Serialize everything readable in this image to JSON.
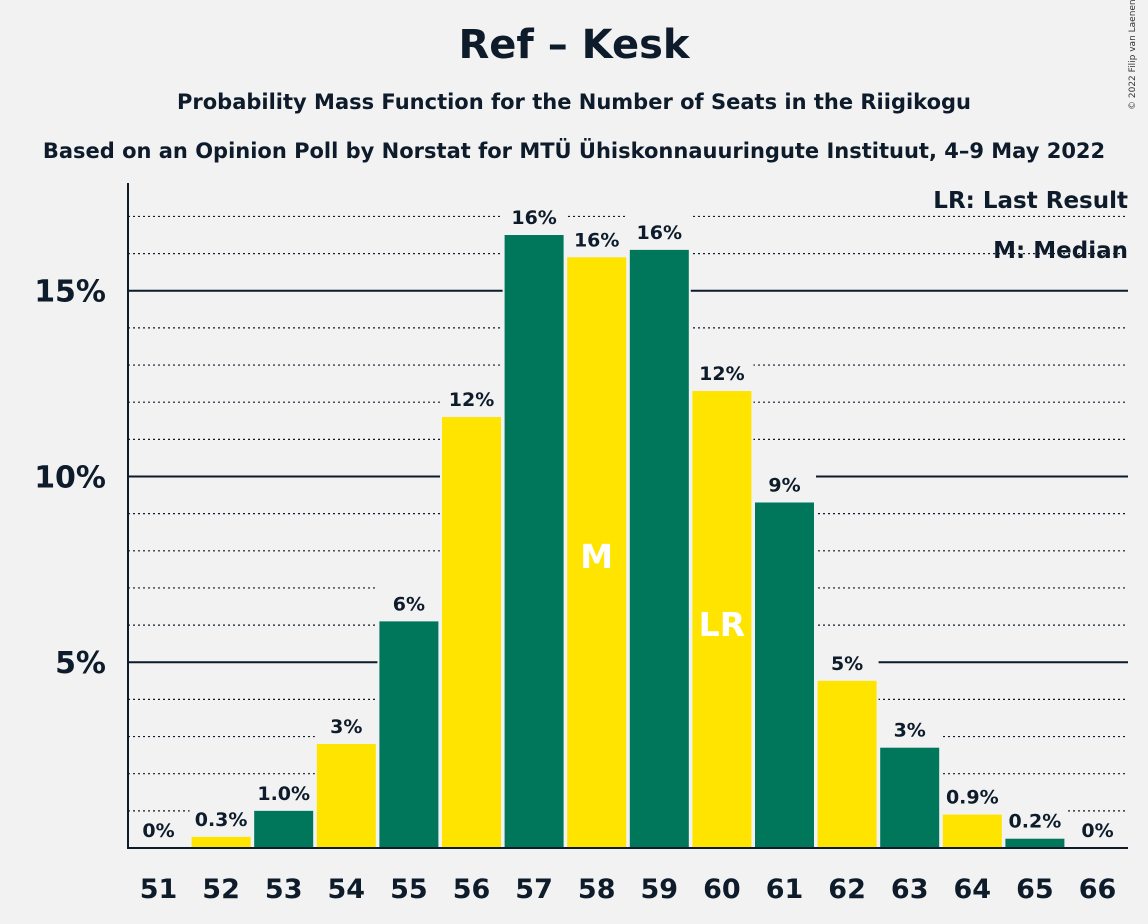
{
  "title": "Ref – Kesk",
  "subtitle": "Probability Mass Function for the Number of Seats in the Riigikogu",
  "subtitle2": "Based on an Opinion Poll by Norstat for MTÜ Ühiskonnauuringute Instituut, 4–9 May 2022",
  "copyright": "© 2022 Filip van Laenen",
  "legend": {
    "last_result": "LR: Last Result",
    "median": "M: Median"
  },
  "colors": {
    "green": "#00765a",
    "yellow": "#ffe400",
    "background": "#f2f2f2",
    "axis": "#0d1b2a"
  },
  "chart_data": {
    "type": "bar",
    "categories": [
      "51",
      "52",
      "53",
      "54",
      "55",
      "56",
      "57",
      "58",
      "59",
      "60",
      "61",
      "62",
      "63",
      "64",
      "65",
      "66"
    ],
    "values": [
      0,
      0.3,
      1.0,
      2.8,
      6.1,
      11.6,
      16.5,
      15.9,
      16.1,
      12.3,
      9.3,
      4.5,
      2.7,
      0.9,
      0.25,
      0
    ],
    "labels": [
      "0%",
      "0.3%",
      "1.0%",
      "3%",
      "6%",
      "12%",
      "16%",
      "16%",
      "16%",
      "12%",
      "9%",
      "5%",
      "3%",
      "0.9%",
      "0.2%",
      "0%"
    ],
    "colors": [
      "green",
      "yellow",
      "green",
      "yellow",
      "green",
      "yellow",
      "green",
      "yellow",
      "green",
      "yellow",
      "green",
      "yellow",
      "green",
      "yellow",
      "green",
      "yellow"
    ],
    "markers": {
      "58": "M",
      "60": "LR"
    },
    "yticks": [
      5,
      10,
      15
    ],
    "ytick_labels": [
      "5%",
      "10%",
      "15%"
    ],
    "minor_step": 1,
    "ylim": [
      0,
      17.9
    ],
    "median_line": 16.0,
    "grid": true
  }
}
